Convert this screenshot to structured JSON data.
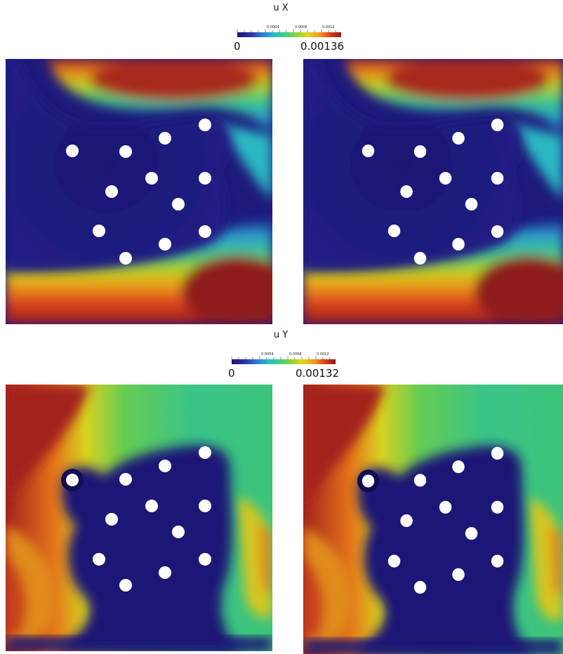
{
  "figure_x": {
    "title": "u X",
    "colorbar": {
      "min_label": "0",
      "max_label": "0.00136",
      "tick_labels": [
        "0.0004",
        "0.0008",
        "0.0012"
      ],
      "colormap": [
        "#1a1470",
        "#2a2fa0",
        "#2f7fd6",
        "#27c0c4",
        "#3fd080",
        "#8fd236",
        "#e5d61f",
        "#f2941a",
        "#d73d1a",
        "#8c1a1a"
      ]
    }
  },
  "figure_y": {
    "title": "u Y",
    "colorbar": {
      "min_label": "0",
      "max_label": "0.00132",
      "tick_labels": [
        "0.0004",
        "0.0008",
        "0.0012"
      ],
      "colormap": [
        "#1a1470",
        "#2a2fa0",
        "#2f7fd6",
        "#27c0c4",
        "#3fd080",
        "#8fd236",
        "#e5d61f",
        "#f2941a",
        "#d73d1a",
        "#8c1a1a"
      ]
    }
  },
  "colors": {
    "background": "#ffffff",
    "hole": "#ffffff",
    "low": "#1a1470",
    "high": "#9b1b1b"
  }
}
